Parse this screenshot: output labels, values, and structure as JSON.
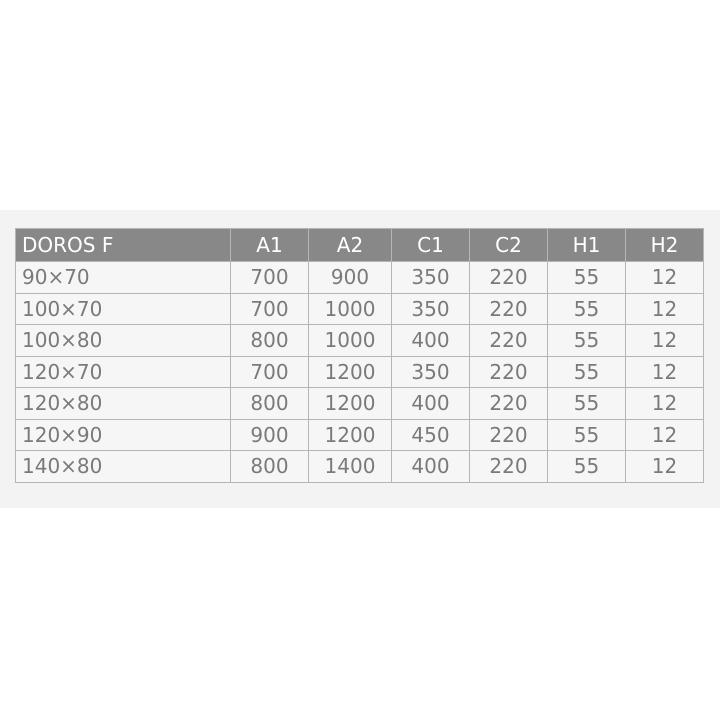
{
  "table": {
    "headers": [
      "DOROS F",
      "A1",
      "A2",
      "C1",
      "C2",
      "H1",
      "H2"
    ],
    "rows": [
      [
        "90×70",
        "700",
        "900",
        "350",
        "220",
        "55",
        "12"
      ],
      [
        "100×70",
        "700",
        "1000",
        "350",
        "220",
        "55",
        "12"
      ],
      [
        "100×80",
        "800",
        "1000",
        "400",
        "220",
        "55",
        "12"
      ],
      [
        "120×70",
        "700",
        "1200",
        "350",
        "220",
        "55",
        "12"
      ],
      [
        "120×80",
        "800",
        "1200",
        "400",
        "220",
        "55",
        "12"
      ],
      [
        "120×90",
        "900",
        "1200",
        "450",
        "220",
        "55",
        "12"
      ],
      [
        "140×80",
        "800",
        "1400",
        "400",
        "220",
        "55",
        "12"
      ]
    ]
  },
  "colors": {
    "header_bg": "#888888",
    "header_text": "#ffffff",
    "cell_text": "#7a7a7a",
    "band_bg": "#f3f3f3"
  }
}
